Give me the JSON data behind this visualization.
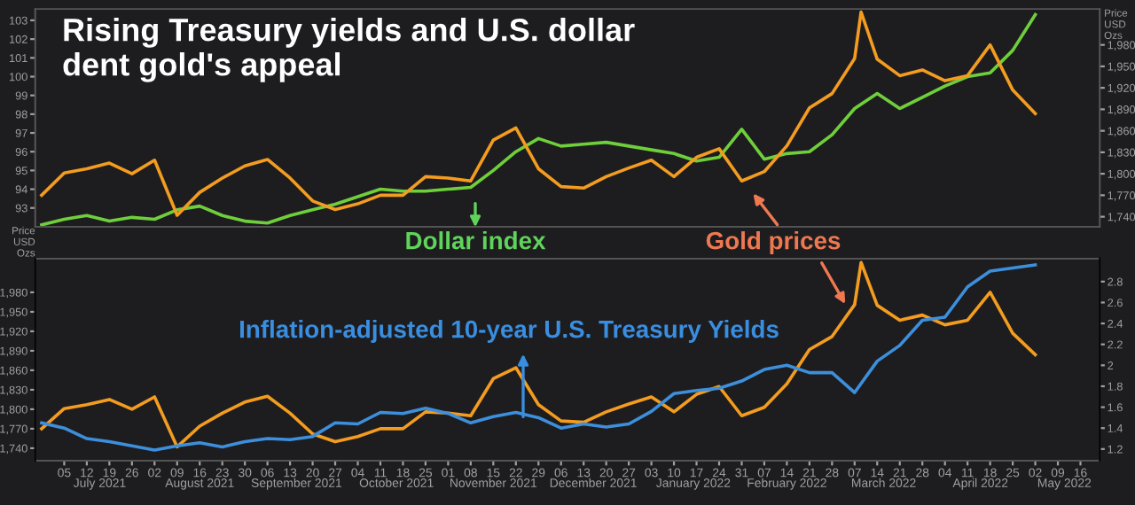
{
  "chart_data": [
    {
      "type": "line",
      "title": "Rising Treasury yields and U.S. dollar dent gold's appeal",
      "x": [
        "2021-06-28",
        "2021-07-05",
        "2021-07-12",
        "2021-07-19",
        "2021-07-26",
        "2021-08-02",
        "2021-08-09",
        "2021-08-16",
        "2021-08-23",
        "2021-08-30",
        "2021-09-06",
        "2021-09-13",
        "2021-09-20",
        "2021-09-27",
        "2021-10-04",
        "2021-10-11",
        "2021-10-18",
        "2021-10-25",
        "2021-11-01",
        "2021-11-08",
        "2021-11-15",
        "2021-11-22",
        "2021-11-29",
        "2021-12-06",
        "2021-12-13",
        "2021-12-20",
        "2021-12-27",
        "2022-01-03",
        "2022-01-10",
        "2022-01-17",
        "2022-01-24",
        "2022-01-31",
        "2022-02-07",
        "2022-02-14",
        "2022-02-21",
        "2022-02-28",
        "2022-03-07",
        "2022-03-14",
        "2022-03-21",
        "2022-03-28",
        "2022-04-04",
        "2022-04-11",
        "2022-04-18",
        "2022-04-25",
        "2022-05-02"
      ],
      "xlim": [
        "2021-06-26",
        "2022-05-22"
      ],
      "ylim": [
        92,
        103.6
      ],
      "yticks": [
        93,
        94,
        95,
        96,
        97,
        98,
        99,
        100,
        101,
        102,
        103
      ],
      "y2label": "Price\nUSD\nOzs",
      "y2lim": [
        1726,
        2030
      ],
      "y2ticks": [
        {
          "value": 1740,
          "label": "1,740"
        },
        {
          "value": 1770,
          "label": "1,770"
        },
        {
          "value": 1800,
          "label": "1,800"
        },
        {
          "value": 1830,
          "label": "1,830"
        },
        {
          "value": 1860,
          "label": "1,860"
        },
        {
          "value": 1890,
          "label": "1,890"
        },
        {
          "value": 1920,
          "label": "1,920"
        },
        {
          "value": 1950,
          "label": "1,950"
        },
        {
          "value": 1980,
          "label": "1,980"
        }
      ],
      "tick_labels": "y",
      "series": [
        {
          "color": "#6fcf3a",
          "values": [
            92.1,
            92.4,
            92.6,
            92.3,
            92.5,
            92.4,
            92.9,
            93.1,
            92.6,
            92.3,
            92.2,
            92.6,
            92.9,
            93.2,
            93.6,
            94.0,
            93.9,
            93.9,
            94.0,
            94.1,
            95.0,
            96.0,
            96.7,
            96.3,
            96.4,
            96.5,
            96.3,
            96.1,
            95.9,
            95.5,
            95.7,
            97.2,
            95.6,
            95.9,
            96.0,
            96.9,
            98.3,
            99.1,
            98.3,
            98.9,
            99.5,
            100.0,
            100.2,
            101.4,
            103.3
          ]
        },
        {
          "color": "#f39c1f",
          "axis": "y2",
          "x": [
            "2021-06-28",
            "2021-07-05",
            "2021-07-12",
            "2021-07-19",
            "2021-07-26",
            "2021-08-02",
            "2021-08-09",
            "2021-08-16",
            "2021-08-23",
            "2021-08-30",
            "2021-09-06",
            "2021-09-13",
            "2021-09-20",
            "2021-09-27",
            "2021-10-04",
            "2021-10-11",
            "2021-10-18",
            "2021-10-25",
            "2021-11-01",
            "2021-11-08",
            "2021-11-15",
            "2021-11-22",
            "2021-11-29",
            "2021-12-06",
            "2021-12-13",
            "2021-12-20",
            "2021-12-27",
            "2022-01-03",
            "2022-01-10",
            "2022-01-17",
            "2022-01-24",
            "2022-01-31",
            "2022-02-07",
            "2022-02-14",
            "2022-02-21",
            "2022-02-28",
            "2022-03-07",
            "2022-03-09",
            "2022-03-14",
            "2022-03-21",
            "2022-03-28",
            "2022-04-04",
            "2022-04-11",
            "2022-04-18",
            "2022-04-25",
            "2022-05-02"
          ],
          "values": [
            1770,
            1801,
            1807,
            1815,
            1800,
            1819,
            1742,
            1774,
            1794,
            1811,
            1820,
            1794,
            1762,
            1750,
            1758,
            1770,
            1770,
            1796,
            1794,
            1790,
            1847,
            1864,
            1807,
            1782,
            1780,
            1796,
            1808,
            1819,
            1796,
            1823,
            1835,
            1790,
            1803,
            1839,
            1892,
            1912,
            1961,
            2026,
            1960,
            1937,
            1945,
            1930,
            1937,
            1980,
            1917,
            1884
          ]
        }
      ],
      "annotations": [
        "Dollar index",
        "Gold prices"
      ]
    },
    {
      "type": "line",
      "x": [
        "2021-06-28",
        "2021-07-05",
        "2021-07-12",
        "2021-07-19",
        "2021-07-26",
        "2021-08-02",
        "2021-08-09",
        "2021-08-16",
        "2021-08-23",
        "2021-08-30",
        "2021-09-06",
        "2021-09-13",
        "2021-09-20",
        "2021-09-27",
        "2021-10-04",
        "2021-10-11",
        "2021-10-18",
        "2021-10-25",
        "2021-11-01",
        "2021-11-08",
        "2021-11-15",
        "2021-11-22",
        "2021-11-29",
        "2021-12-06",
        "2021-12-13",
        "2021-12-20",
        "2021-12-27",
        "2022-01-03",
        "2022-01-10",
        "2022-01-17",
        "2022-01-24",
        "2022-01-31",
        "2022-02-07",
        "2022-02-14",
        "2022-02-21",
        "2022-02-28",
        "2022-03-07",
        "2022-03-14",
        "2022-03-21",
        "2022-03-28",
        "2022-04-04",
        "2022-04-11",
        "2022-04-18",
        "2022-04-25",
        "2022-05-02"
      ],
      "xlim": [
        "2021-06-26",
        "2022-05-22"
      ],
      "xticks": [
        {
          "value": "2021-07-05",
          "label": "05"
        },
        {
          "value": "2021-07-12",
          "label": "12"
        },
        {
          "value": "2021-07-19",
          "label": "19"
        },
        {
          "value": "2021-07-26",
          "label": "26"
        },
        {
          "value": "2021-08-02",
          "label": "02"
        },
        {
          "value": "2021-08-09",
          "label": "09"
        },
        {
          "value": "2021-08-16",
          "label": "16"
        },
        {
          "value": "2021-08-23",
          "label": "23"
        },
        {
          "value": "2021-08-30",
          "label": "30"
        },
        {
          "value": "2021-09-06",
          "label": "06"
        },
        {
          "value": "2021-09-13",
          "label": "13"
        },
        {
          "value": "2021-09-20",
          "label": "20"
        },
        {
          "value": "2021-09-27",
          "label": "27"
        },
        {
          "value": "2021-10-04",
          "label": "04"
        },
        {
          "value": "2021-10-11",
          "label": "11"
        },
        {
          "value": "2021-10-18",
          "label": "18"
        },
        {
          "value": "2021-10-25",
          "label": "25"
        },
        {
          "value": "2021-11-01",
          "label": "01"
        },
        {
          "value": "2021-11-08",
          "label": "08"
        },
        {
          "value": "2021-11-15",
          "label": "15"
        },
        {
          "value": "2021-11-22",
          "label": "22"
        },
        {
          "value": "2021-11-29",
          "label": "29"
        },
        {
          "value": "2021-12-06",
          "label": "06"
        },
        {
          "value": "2021-12-13",
          "label": "13"
        },
        {
          "value": "2021-12-20",
          "label": "20"
        },
        {
          "value": "2021-12-27",
          "label": "27"
        },
        {
          "value": "2022-01-03",
          "label": "03"
        },
        {
          "value": "2022-01-10",
          "label": "10"
        },
        {
          "value": "2022-01-17",
          "label": "17"
        },
        {
          "value": "2022-01-24",
          "label": "24"
        },
        {
          "value": "2022-01-31",
          "label": "31"
        },
        {
          "value": "2022-02-07",
          "label": "07"
        },
        {
          "value": "2022-02-14",
          "label": "14"
        },
        {
          "value": "2022-02-21",
          "label": "21"
        },
        {
          "value": "2022-02-28",
          "label": "28"
        },
        {
          "value": "2022-03-07",
          "label": "07"
        },
        {
          "value": "2022-03-14",
          "label": "14"
        },
        {
          "value": "2022-03-21",
          "label": "21"
        },
        {
          "value": "2022-03-28",
          "label": "28"
        },
        {
          "value": "2022-04-04",
          "label": "04"
        },
        {
          "value": "2022-04-11",
          "label": "11"
        },
        {
          "value": "2022-04-18",
          "label": "18"
        },
        {
          "value": "2022-04-25",
          "label": "25"
        },
        {
          "value": "2022-05-02",
          "label": "02"
        },
        {
          "value": "2022-05-09",
          "label": "09"
        },
        {
          "value": "2022-05-16",
          "label": "16"
        }
      ],
      "x2lim": [
        "2021-06-26",
        "2022-05-22"
      ],
      "x2ticks": [
        {
          "value": "2021-07-16",
          "label": "July 2021"
        },
        {
          "value": "2021-08-16",
          "label": "August 2021"
        },
        {
          "value": "2021-09-15",
          "label": "September 2021"
        },
        {
          "value": "2021-10-16",
          "label": "October 2021"
        },
        {
          "value": "2021-11-15",
          "label": "November 2021"
        },
        {
          "value": "2021-12-16",
          "label": "December 2021"
        },
        {
          "value": "2022-01-16",
          "label": "January 2022"
        },
        {
          "value": "2022-02-14",
          "label": "February 2022"
        },
        {
          "value": "2022-03-16",
          "label": "March 2022"
        },
        {
          "value": "2022-04-15",
          "label": "April 2022"
        },
        {
          "value": "2022-05-11",
          "label": "May 2022"
        }
      ],
      "ylabel": "Price\nUSD\nOzs",
      "ylim": [
        1721,
        2032
      ],
      "yticks": [
        {
          "value": 1740,
          "label": "1,740"
        },
        {
          "value": 1770,
          "label": "1,770"
        },
        {
          "value": 1800,
          "label": "1,800"
        },
        {
          "value": 1830,
          "label": "1,830"
        },
        {
          "value": 1860,
          "label": "1,860"
        },
        {
          "value": 1890,
          "label": "1,890"
        },
        {
          "value": 1920,
          "label": "1,920"
        },
        {
          "value": 1950,
          "label": "1,950"
        },
        {
          "value": 1980,
          "label": "1,980"
        }
      ],
      "y2lim": [
        1.09,
        3.02
      ],
      "y2ticks": [
        1.2,
        1.4,
        1.6,
        1.8,
        2,
        2.2,
        2.4,
        2.6,
        2.8
      ],
      "series": [
        {
          "color": "#f39c1f",
          "x": [
            "2021-06-28",
            "2021-07-05",
            "2021-07-12",
            "2021-07-19",
            "2021-07-26",
            "2021-08-02",
            "2021-08-09",
            "2021-08-16",
            "2021-08-23",
            "2021-08-30",
            "2021-09-06",
            "2021-09-13",
            "2021-09-20",
            "2021-09-27",
            "2021-10-04",
            "2021-10-11",
            "2021-10-18",
            "2021-10-25",
            "2021-11-01",
            "2021-11-08",
            "2021-11-15",
            "2021-11-22",
            "2021-11-29",
            "2021-12-06",
            "2021-12-13",
            "2021-12-20",
            "2021-12-27",
            "2022-01-03",
            "2022-01-10",
            "2022-01-17",
            "2022-01-24",
            "2022-01-31",
            "2022-02-07",
            "2022-02-14",
            "2022-02-21",
            "2022-02-28",
            "2022-03-07",
            "2022-03-09",
            "2022-03-14",
            "2022-03-21",
            "2022-03-28",
            "2022-04-04",
            "2022-04-11",
            "2022-04-18",
            "2022-04-25",
            "2022-05-02"
          ],
          "values": [
            1770,
            1801,
            1807,
            1815,
            1800,
            1819,
            1742,
            1774,
            1794,
            1811,
            1820,
            1794,
            1762,
            1750,
            1758,
            1770,
            1770,
            1796,
            1794,
            1790,
            1847,
            1864,
            1807,
            1782,
            1780,
            1796,
            1808,
            1819,
            1796,
            1823,
            1835,
            1790,
            1803,
            1839,
            1892,
            1912,
            1961,
            2026,
            1960,
            1937,
            1945,
            1930,
            1937,
            1980,
            1917,
            1884
          ]
        },
        {
          "color": "#3d8fdb",
          "axis": "y2",
          "values": [
            1.45,
            1.4,
            1.3,
            1.27,
            1.23,
            1.19,
            1.23,
            1.26,
            1.22,
            1.27,
            1.3,
            1.29,
            1.32,
            1.45,
            1.44,
            1.55,
            1.54,
            1.59,
            1.54,
            1.45,
            1.51,
            1.55,
            1.5,
            1.4,
            1.44,
            1.41,
            1.44,
            1.56,
            1.73,
            1.76,
            1.78,
            1.85,
            1.96,
            2.0,
            1.93,
            1.93,
            1.74,
            2.04,
            2.19,
            2.43,
            2.46,
            2.75,
            2.9,
            2.93,
            2.96
          ]
        }
      ],
      "annotations": [
        "Inflation-adjusted 10-year U.S. Treasury Yields"
      ]
    }
  ]
}
